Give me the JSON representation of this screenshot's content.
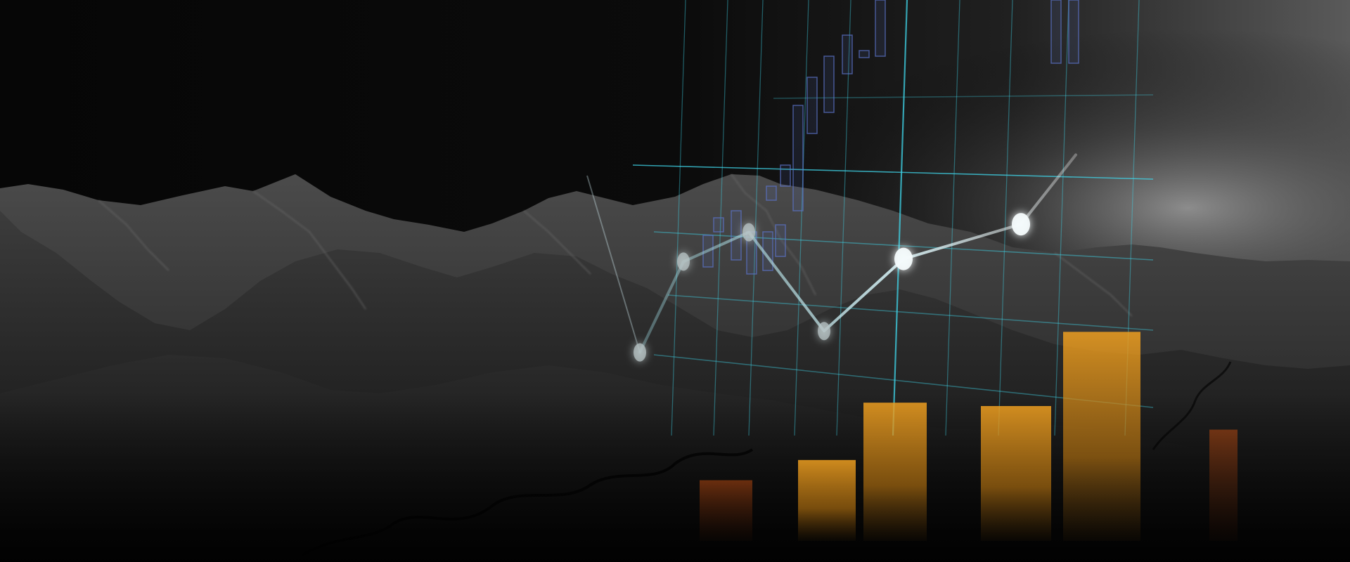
{
  "scene": {
    "subject": "mountain-landscape",
    "treatment": "grayscale",
    "overlay": "financial-chart-graphic",
    "colors": {
      "background": "#070707",
      "sky_glow": "#8a8a8a",
      "grid": "#3fd4e8",
      "line": "#cde8ee",
      "bars": "#f0a020",
      "candles": "#5b74c9"
    }
  },
  "chart_data": {
    "type": "bar",
    "series": [
      {
        "type": "line",
        "values": [
          0.18,
          0.52,
          0.63,
          0.26,
          0.53,
          0.66,
          0.92
        ]
      },
      {
        "type": "bar",
        "values": [
          0.18,
          0.24,
          0.41,
          0.4,
          0.62,
          0.33
        ]
      }
    ],
    "grid": true,
    "xlabel": "",
    "ylabel": ""
  }
}
